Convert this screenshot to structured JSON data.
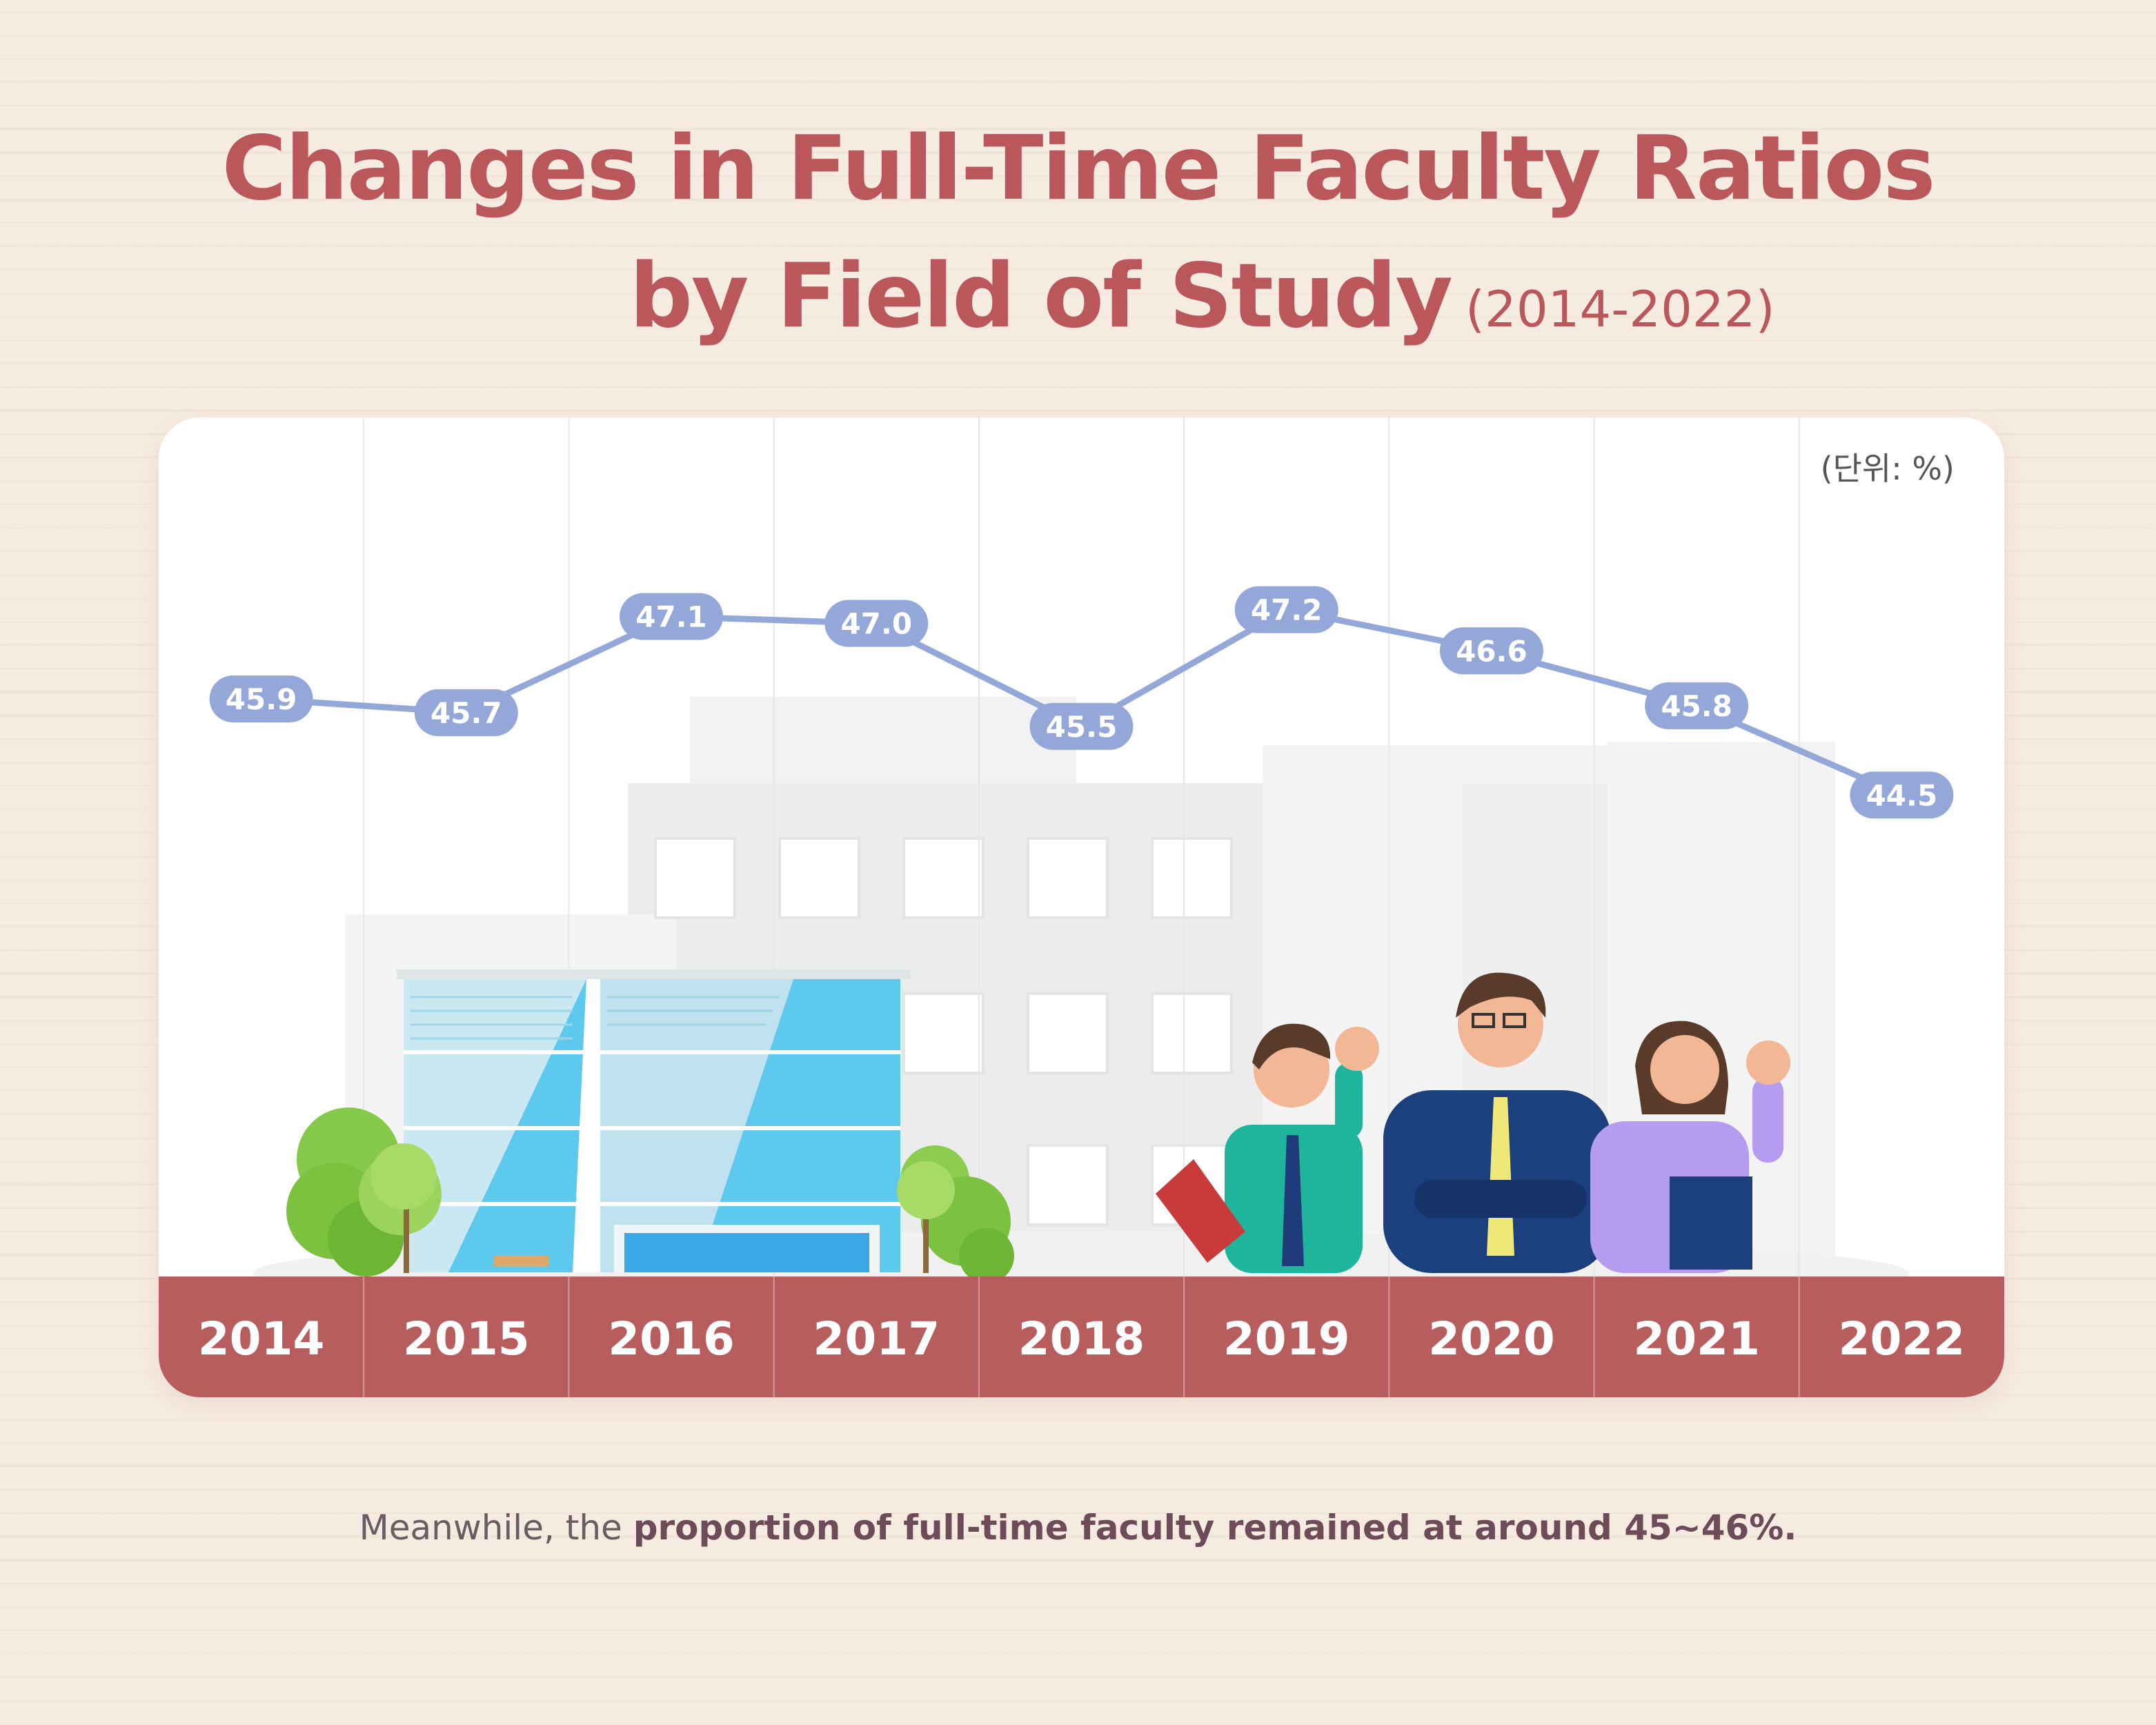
{
  "title_line1": "Changes in Full-Time Faculty Ratios",
  "title_line2": "by Field of Study",
  "title_period": "(2014-2022)",
  "unit_label": "(단위: %)",
  "footer": {
    "prefix": "Meanwhile, the ",
    "bold": "proportion of full-time faculty remained at around 45~46%."
  },
  "colors": {
    "title": "#b9575b",
    "line": "#93a8d9",
    "year_bar": "#b75d5d",
    "label_text": "#ffffff"
  },
  "chart_data": {
    "type": "line",
    "categories": [
      "2014",
      "2015",
      "2016",
      "2017",
      "2018",
      "2019",
      "2020",
      "2021",
      "2022"
    ],
    "series": [
      {
        "values": [
          45.9,
          45.7,
          47.1,
          47.0,
          45.5,
          47.2,
          46.6,
          45.8,
          44.5
        ]
      }
    ],
    "data_labels": [
      "45.9",
      "45.7",
      "47.1",
      "47.0",
      "45.5",
      "47.2",
      "46.6",
      "45.8",
      "44.5"
    ],
    "ylim": [
      30,
      50
    ],
    "grid": "vertical",
    "legend": "none"
  }
}
